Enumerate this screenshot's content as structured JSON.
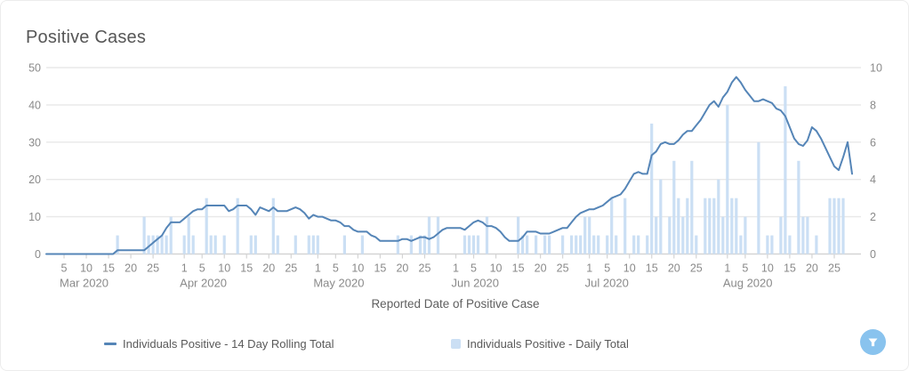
{
  "card": {
    "title": "Positive Cases"
  },
  "chart_data": {
    "type": "mixed",
    "title": "Positive Cases",
    "xlabel": "Reported Date of Positive Case",
    "grid": "horizontal",
    "legend_position": "bottom",
    "left_axis": {
      "min": 0,
      "max": 50,
      "ticks": [
        0,
        10,
        20,
        30,
        40,
        50
      ]
    },
    "right_axis": {
      "min": 0,
      "max": 10,
      "ticks": [
        0,
        2,
        4,
        6,
        8,
        10
      ]
    },
    "months": [
      {
        "label": "Mar 2020",
        "days": 31,
        "tick_days": [
          5,
          10,
          15,
          20,
          25
        ]
      },
      {
        "label": "Apr 2020",
        "days": 30,
        "tick_days": [
          1,
          5,
          10,
          15,
          20,
          25
        ]
      },
      {
        "label": "May 2020",
        "days": 31,
        "tick_days": [
          1,
          5,
          10,
          15,
          20,
          25
        ]
      },
      {
        "label": "Jun 2020",
        "days": 30,
        "tick_days": [
          1,
          5,
          10,
          15,
          20,
          25
        ]
      },
      {
        "label": "Jul 2020",
        "days": 31,
        "tick_days": [
          1,
          5,
          10,
          15,
          20,
          25
        ]
      },
      {
        "label": "Aug 2020",
        "days": 31,
        "tick_days": [
          1,
          5,
          10,
          15,
          20,
          25
        ]
      }
    ],
    "series": [
      {
        "name": "Individuals Positive - 14 Day Rolling Total",
        "type": "line",
        "axis": "left",
        "color": "#5585b7",
        "values": [
          0,
          0,
          0,
          0,
          0,
          0,
          0,
          0,
          0,
          0,
          0,
          0,
          0,
          0,
          0,
          0,
          1,
          1,
          1,
          1,
          1,
          1,
          1,
          2,
          3,
          4,
          5,
          7,
          8.5,
          8.5,
          8.5,
          9.5,
          10.5,
          11.5,
          12,
          12,
          13,
          13,
          13,
          13,
          13,
          11.5,
          12,
          13,
          13,
          13,
          12,
          10.5,
          12.5,
          12,
          11.5,
          12.5,
          11.5,
          11.5,
          11.5,
          12,
          12.5,
          12,
          11,
          9.5,
          10.5,
          10,
          10,
          9.5,
          9,
          9,
          8.5,
          7.5,
          7.5,
          6.5,
          6,
          6,
          6,
          5,
          4.5,
          3.5,
          3.5,
          3.5,
          3.5,
          3.5,
          4,
          4,
          3.5,
          4,
          4.5,
          4.5,
          4,
          4.5,
          5.5,
          6.5,
          7,
          7,
          7,
          7,
          6.5,
          7.5,
          8.5,
          9,
          8.5,
          7.5,
          7.5,
          7,
          6,
          4.5,
          3.5,
          3.5,
          3.5,
          4.5,
          6,
          6,
          6,
          5.5,
          5.5,
          5.5,
          6,
          6.5,
          7,
          7,
          8.5,
          10,
          11,
          11.5,
          12,
          12,
          12.5,
          13,
          14,
          15,
          15.5,
          16,
          17.5,
          19.5,
          21.5,
          22,
          21.5,
          21.5,
          26.5,
          27.5,
          29.5,
          30,
          29.5,
          29.5,
          30.5,
          32,
          33,
          33,
          34.5,
          36,
          38,
          40,
          41,
          39.5,
          42,
          43.5,
          46,
          47.5,
          46,
          44,
          42.5,
          41,
          41,
          41.5,
          41,
          40.5,
          39,
          38.5,
          37,
          34,
          31,
          29.5,
          29,
          30.5,
          34,
          33,
          31,
          28.5,
          26,
          23.5,
          22.5,
          26,
          30,
          21.5
        ]
      },
      {
        "name": "Individuals Positive - Daily Total",
        "type": "bar",
        "axis": "right",
        "color": "#cbdff4",
        "values": [
          0,
          0,
          0,
          0,
          0,
          0,
          0,
          0,
          0,
          0,
          0,
          0,
          0,
          0,
          0,
          0,
          1,
          0,
          0,
          0,
          0,
          0,
          2,
          1,
          1,
          1,
          1,
          1,
          2,
          0,
          0,
          1,
          2,
          1,
          0,
          0,
          3,
          1,
          1,
          0,
          1,
          0,
          0,
          3,
          0,
          0,
          1,
          1,
          0,
          0,
          0,
          3,
          1,
          0,
          0,
          0,
          1,
          0,
          0,
          1,
          1,
          1,
          0,
          0,
          0,
          0,
          0,
          1,
          0,
          0,
          0,
          1,
          0,
          0,
          0,
          0,
          0,
          0,
          0,
          1,
          0,
          0,
          1,
          0,
          1,
          1,
          2,
          0,
          2,
          0,
          0,
          0,
          0,
          0,
          1,
          1,
          1,
          1,
          0,
          2,
          0,
          0,
          0,
          0,
          0,
          0,
          2,
          1,
          1,
          0,
          1,
          0,
          1,
          1,
          0,
          0,
          1,
          0,
          1,
          1,
          1,
          2,
          2,
          1,
          1,
          0,
          1,
          3,
          1,
          0,
          3,
          0,
          1,
          1,
          0,
          1,
          7,
          2,
          4,
          0,
          2,
          5,
          3,
          2,
          3,
          5,
          1,
          0,
          3,
          3,
          3,
          4,
          2,
          8,
          3,
          3,
          1,
          2,
          0,
          0,
          6,
          0,
          1,
          1,
          0,
          2,
          9,
          1,
          0,
          5,
          2,
          2,
          0,
          1,
          0,
          0,
          3,
          3,
          3,
          3,
          0,
          0
        ]
      }
    ]
  },
  "legend": {
    "items": [
      {
        "label": "Individuals Positive - 14 Day Rolling Total",
        "marker": "line-dash",
        "color": "#5585b7"
      },
      {
        "label": "Individuals Positive - Daily Total",
        "marker": "square",
        "color": "#cbdff4"
      }
    ]
  },
  "controls": {
    "filter_button": {
      "icon": "funnel-icon",
      "color": "#89c3ee"
    }
  },
  "colors": {
    "line_series": "#5585b7",
    "bar_series": "#cbdff4",
    "gridline": "#e8e8e8",
    "axis_line": "#d4d4d4",
    "tick_text": "#8a8a8a",
    "label_text": "#5f5f5f"
  }
}
